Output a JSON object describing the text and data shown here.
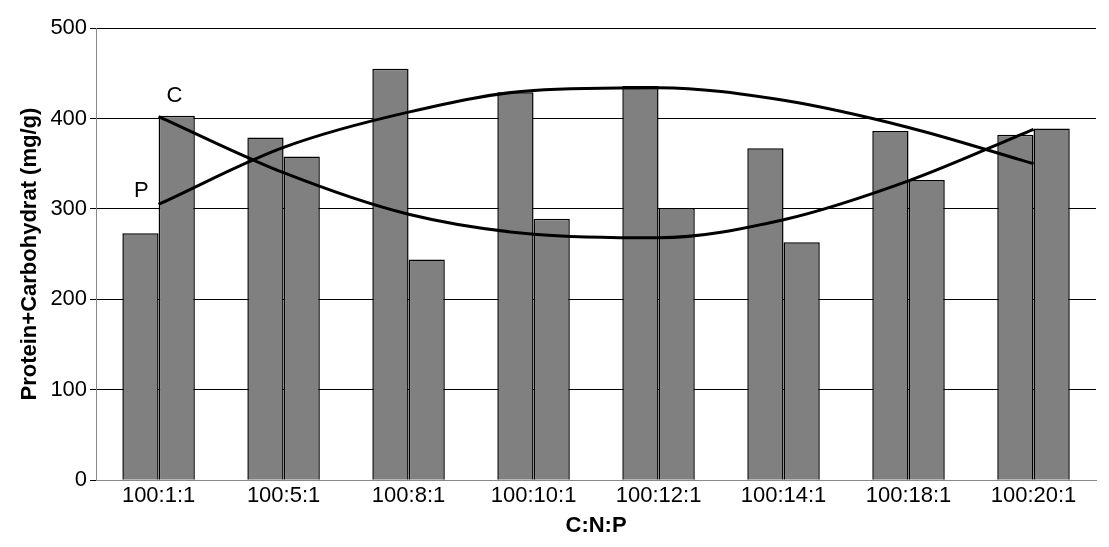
{
  "chart_data": {
    "type": "bar",
    "xlabel": "C:N:P",
    "ylabel": "Protein+Carbohydrat (mg/g)",
    "categories": [
      "100:1:1",
      "100:5:1",
      "100:8:1",
      "100:10:1",
      "100:12:1",
      "100:14:1",
      "100:18:1",
      "100:20:1"
    ],
    "series": [
      {
        "color": "#808080",
        "values": [
          273,
          379,
          455,
          429,
          436,
          367,
          386,
          382
        ]
      },
      {
        "color": "#808080",
        "values": [
          403,
          358,
          244,
          289,
          301,
          263,
          332,
          389
        ]
      },
      {
        "type": "line",
        "name": "C",
        "color": "#000000",
        "values": [
          402,
          340,
          294,
          272,
          268,
          288,
          331,
          388
        ]
      },
      {
        "type": "line",
        "name": "P",
        "color": "#000000",
        "values": [
          305,
          368,
          407,
          431,
          434,
          420,
          390,
          350
        ]
      }
    ],
    "ylim": [
      0,
      500
    ],
    "yticks": [
      0,
      100,
      200,
      300,
      400,
      500
    ],
    "grid": "y",
    "legend": false,
    "marker": "none",
    "line_style": "solid"
  }
}
